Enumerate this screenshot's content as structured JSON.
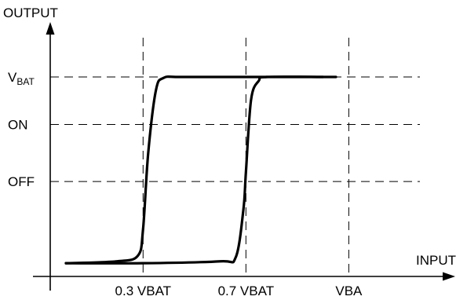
{
  "chart_data": {
    "type": "line",
    "title": "",
    "xlabel": "INPUT",
    "ylabel": "OUTPUT",
    "x_ticks": [
      "0.3 VBAT",
      "0.7 VBAT",
      "VBA"
    ],
    "y_ticks": [
      {
        "main": "V",
        "sub": "BAT"
      },
      {
        "main": "ON",
        "sub": ""
      },
      {
        "main": "OFF",
        "sub": ""
      }
    ],
    "x_tick_values": [
      0.3,
      0.7,
      1.1
    ],
    "y_tick_values": [
      1.0,
      0.75,
      0.45
    ],
    "xlim": [
      -0.1,
      1.25
    ],
    "ylim": [
      -0.1,
      1.2
    ],
    "grid": true,
    "legend": "none",
    "series": [
      {
        "role": "rising",
        "x": [
          0.0,
          0.2,
          0.28,
          0.3,
          0.32,
          0.35,
          0.38,
          0.45,
          0.7,
          1.05
        ],
        "y": [
          0.02,
          0.03,
          0.06,
          0.2,
          0.6,
          0.93,
          0.995,
          1.0,
          1.0,
          1.0
        ]
      },
      {
        "role": "falling",
        "x": [
          0.0,
          0.3,
          0.6,
          0.66,
          0.69,
          0.7,
          0.72,
          0.75,
          0.78,
          1.0
        ],
        "y": [
          0.02,
          0.02,
          0.03,
          0.05,
          0.3,
          0.5,
          0.88,
          0.98,
          1.0,
          1.0
        ]
      }
    ]
  }
}
